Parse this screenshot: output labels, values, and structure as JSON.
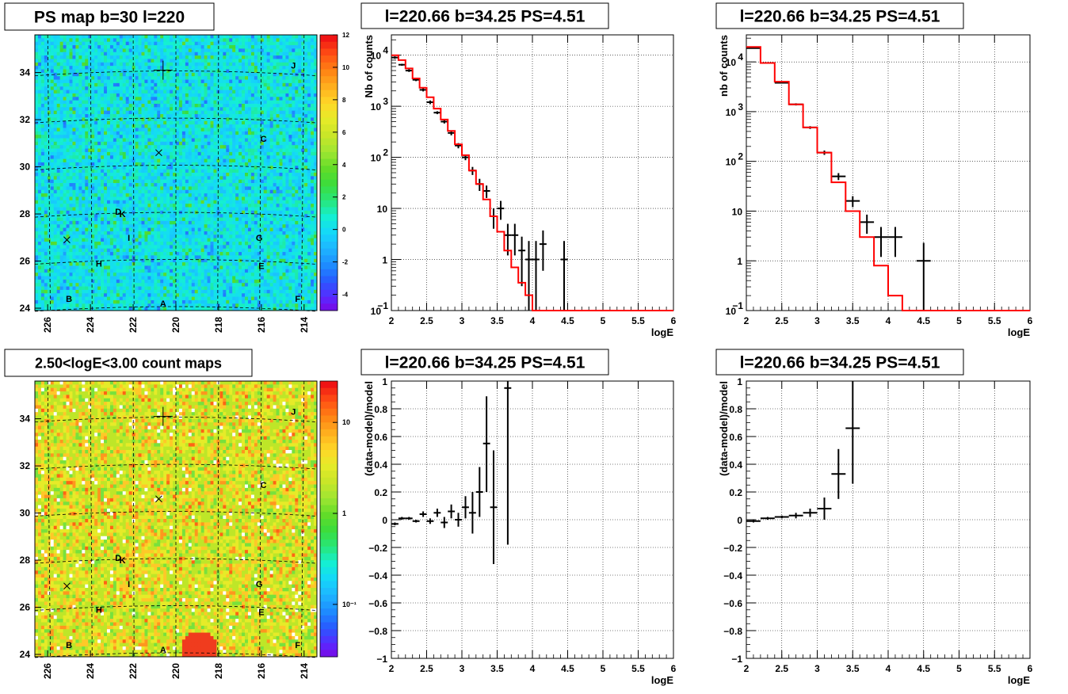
{
  "chart_data": [
    {
      "id": "psmap",
      "type": "heatmap",
      "title": "PS map b=30 l=220",
      "x_ticks": [
        "226",
        "224",
        "222",
        "220",
        "218",
        "216",
        "214"
      ],
      "y_ticks": [
        "24",
        "26",
        "28",
        "30",
        "32",
        "34"
      ],
      "xlim": [
        226.6,
        213.4
      ],
      "ylim": [
        23.9,
        35.6
      ],
      "colorbar_ticks": [
        "12",
        "10",
        "8",
        "6",
        "4",
        "2",
        "0",
        "-2",
        "-4"
      ],
      "colorbar_range": [
        -5,
        12
      ],
      "field_value_typical": 0.5,
      "sources": [
        {
          "label": "J",
          "l": 214.5,
          "b": 34.3
        },
        {
          "label": "C",
          "l": 215.9,
          "b": 31.2
        },
        {
          "label": "D",
          "l": 222.7,
          "b": 28.1
        },
        {
          "label": "K",
          "l": 222.5,
          "b": 28.0
        },
        {
          "label": "G",
          "l": 216.1,
          "b": 27.0
        },
        {
          "label": "I",
          "l": 222.2,
          "b": 27.0
        },
        {
          "label": "H",
          "l": 223.6,
          "b": 25.9
        },
        {
          "label": "E",
          "l": 216.0,
          "b": 25.8
        },
        {
          "label": "B",
          "l": 225.0,
          "b": 24.4
        },
        {
          "label": "A",
          "l": 220.6,
          "b": 24.2
        },
        {
          "label": "F",
          "l": 214.3,
          "b": 24.4
        }
      ],
      "markers": [
        {
          "symbol": "+",
          "l": 220.6,
          "b": 34.1
        },
        {
          "symbol": "x",
          "l": 220.8,
          "b": 30.6
        },
        {
          "symbol": "x",
          "l": 225.1,
          "b": 26.9
        }
      ]
    },
    {
      "id": "countmap",
      "type": "heatmap",
      "title": "2.50<logE<3.00 count maps",
      "x_ticks": [
        "226",
        "224",
        "222",
        "220",
        "218",
        "216",
        "214"
      ],
      "y_ticks": [
        "24",
        "26",
        "28",
        "30",
        "32",
        "34"
      ],
      "xlim": [
        226.6,
        213.4
      ],
      "ylim": [
        23.9,
        35.6
      ],
      "colorbar_ticks": [
        "10",
        "1",
        "10⁻¹"
      ],
      "colorbar_scale": "log",
      "sources": [
        {
          "label": "J",
          "l": 214.5,
          "b": 34.3
        },
        {
          "label": "C",
          "l": 215.9,
          "b": 31.2
        },
        {
          "label": "D",
          "l": 222.7,
          "b": 28.1
        },
        {
          "label": "K",
          "l": 222.5,
          "b": 28.0
        },
        {
          "label": "G",
          "l": 216.1,
          "b": 27.0
        },
        {
          "label": "I",
          "l": 222.2,
          "b": 27.0
        },
        {
          "label": "H",
          "l": 223.6,
          "b": 25.9
        },
        {
          "label": "E",
          "l": 216.0,
          "b": 25.8
        },
        {
          "label": "B",
          "l": 225.0,
          "b": 24.4
        },
        {
          "label": "A",
          "l": 220.6,
          "b": 24.2
        },
        {
          "label": "F",
          "l": 214.3,
          "b": 24.4
        }
      ],
      "markers": [
        {
          "symbol": "+",
          "l": 220.6,
          "b": 34.1
        },
        {
          "symbol": "x",
          "l": 220.8,
          "b": 30.6
        },
        {
          "symbol": "x",
          "l": 225.1,
          "b": 26.9
        }
      ]
    },
    {
      "id": "spec1",
      "type": "line",
      "title": "l=220.66 b=34.25 PS=4.51",
      "xlabel": "logE",
      "ylabel": "Nb of counts",
      "xlim": [
        2,
        6
      ],
      "ylim": [
        0.1,
        25000
      ],
      "yscale": "log",
      "grid": true,
      "x_ticks": [
        "2",
        "2.5",
        "3",
        "3.5",
        "4",
        "4.5",
        "5",
        "5.5",
        "6"
      ],
      "y_ticks": [
        {
          "v": 0.1,
          "t": "10",
          "sup": "−1"
        },
        {
          "v": 1,
          "t": "1",
          "sup": ""
        },
        {
          "v": 10,
          "t": "10",
          "sup": ""
        },
        {
          "v": 100,
          "t": "10",
          "sup": "2"
        },
        {
          "v": 1000,
          "t": "10",
          "sup": "3"
        },
        {
          "v": 10000,
          "t": "10",
          "sup": "4"
        }
      ],
      "series": [
        {
          "kind": "points",
          "x": [
            2.05,
            2.15,
            2.25,
            2.35,
            2.45,
            2.55,
            2.65,
            2.75,
            2.85,
            2.95,
            3.05,
            3.15,
            3.25,
            3.35,
            3.45,
            3.55,
            3.65,
            3.75,
            3.85,
            3.95,
            4.05,
            4.15,
            4.45
          ],
          "y": [
            9000,
            6500,
            5000,
            3300,
            2100,
            1200,
            750,
            500,
            300,
            170,
            100,
            55,
            30,
            22,
            7,
            10,
            3,
            3,
            1.5,
            1,
            1,
            2,
            1
          ],
          "ylo": [
            8500,
            6200,
            4700,
            3100,
            1950,
            1100,
            700,
            460,
            270,
            150,
            88,
            45,
            22,
            16,
            4,
            6,
            1.2,
            1.2,
            0.3,
            0.1,
            0.1,
            0.6,
            0.1
          ],
          "yhi": [
            9500,
            6800,
            5300,
            3500,
            2250,
            1300,
            800,
            540,
            330,
            190,
            112,
            65,
            38,
            28,
            10,
            14,
            5,
            5,
            2.8,
            2.3,
            2.3,
            3.7,
            2.3
          ]
        },
        {
          "kind": "model",
          "color": "#ff0000",
          "x": [
            2.0,
            2.1,
            2.2,
            2.3,
            2.4,
            2.5,
            2.6,
            2.7,
            2.8,
            2.9,
            3.0,
            3.1,
            3.2,
            3.3,
            3.4,
            3.5,
            3.6,
            3.7,
            3.8,
            3.9,
            4.0,
            4.1,
            4.2,
            6.0
          ],
          "y": [
            10000,
            8000,
            5500,
            3500,
            2300,
            1500,
            900,
            550,
            330,
            180,
            110,
            55,
            30,
            15,
            7,
            3.5,
            1.5,
            0.7,
            0.35,
            0.2,
            0.1,
            0.1,
            0.1,
            0.1
          ]
        }
      ]
    },
    {
      "id": "spec2",
      "type": "line",
      "title": "l=220.66 b=34.25 PS=4.51",
      "xlabel": "logE",
      "ylabel": "nb of counts",
      "xlim": [
        2,
        6
      ],
      "ylim": [
        0.1,
        35000
      ],
      "yscale": "log",
      "grid": true,
      "x_ticks": [
        "2",
        "2.5",
        "3",
        "3.5",
        "4",
        "4.5",
        "5",
        "5.5",
        "6"
      ],
      "y_ticks": [
        {
          "v": 0.1,
          "t": "10",
          "sup": "−1"
        },
        {
          "v": 1,
          "t": "1",
          "sup": ""
        },
        {
          "v": 10,
          "t": "10",
          "sup": ""
        },
        {
          "v": 100,
          "t": "10",
          "sup": "2"
        },
        {
          "v": 1000,
          "t": "10",
          "sup": "3"
        },
        {
          "v": 10000,
          "t": "10",
          "sup": "4"
        }
      ],
      "series": [
        {
          "kind": "points",
          "x": [
            2.1,
            2.3,
            2.5,
            2.7,
            2.9,
            3.1,
            3.3,
            3.5,
            3.7,
            3.9,
            4.1,
            4.5
          ],
          "y": [
            19000,
            9500,
            3800,
            1400,
            480,
            150,
            50,
            16,
            6,
            3,
            3,
            1
          ],
          "ylo": [
            18500,
            9300,
            3700,
            1330,
            450,
            135,
            42,
            12,
            3.5,
            1.2,
            1.2,
            0.1
          ],
          "yhi": [
            19500,
            9700,
            3900,
            1470,
            510,
            165,
            58,
            20,
            8.5,
            4.8,
            4.8,
            2.3
          ]
        },
        {
          "kind": "model",
          "color": "#ff0000",
          "x": [
            2.0,
            2.2,
            2.4,
            2.6,
            2.8,
            3.0,
            3.2,
            3.4,
            3.6,
            3.8,
            4.0,
            4.2,
            6.0
          ],
          "y": [
            20000,
            9500,
            4000,
            1400,
            480,
            150,
            38,
            10,
            3,
            0.8,
            0.2,
            0.1,
            0.1
          ]
        }
      ]
    },
    {
      "id": "resid1",
      "type": "scatter",
      "title": "l=220.66 b=34.25 PS=4.51",
      "xlabel": "logE",
      "ylabel": "(data-model)/model",
      "xlim": [
        2,
        6
      ],
      "ylim": [
        -1,
        1
      ],
      "grid": true,
      "x_ticks": [
        "2",
        "2.5",
        "3",
        "3.5",
        "4",
        "4.5",
        "5",
        "5.5",
        "6"
      ],
      "y_ticks": [
        "−1",
        "−0.8",
        "−0.6",
        "−0.4",
        "−0.2",
        "0",
        "0.2",
        "0.4",
        "0.6",
        "0.8",
        "1"
      ],
      "series": [
        {
          "kind": "points",
          "x": [
            2.05,
            2.15,
            2.25,
            2.35,
            2.45,
            2.55,
            2.65,
            2.75,
            2.85,
            2.95,
            3.05,
            3.15,
            3.25,
            3.35,
            3.45,
            3.65
          ],
          "y": [
            -0.03,
            0.01,
            0.01,
            -0.01,
            0.04,
            -0.01,
            0.05,
            -0.02,
            0.06,
            0.0,
            0.09,
            0.05,
            0.2,
            0.55,
            0.09,
            0.95
          ],
          "ylo": [
            -0.04,
            0.0,
            0.0,
            -0.02,
            0.02,
            -0.03,
            0.02,
            -0.06,
            0.01,
            -0.05,
            0.01,
            -0.1,
            0.02,
            0.2,
            -0.32,
            -0.18
          ],
          "yhi": [
            -0.02,
            0.02,
            0.02,
            0.0,
            0.06,
            0.01,
            0.08,
            0.02,
            0.11,
            0.05,
            0.17,
            0.2,
            0.38,
            0.89,
            0.5,
            1.0
          ]
        }
      ]
    },
    {
      "id": "resid2",
      "type": "scatter",
      "title": "l=220.66 b=34.25 PS=4.51",
      "xlabel": "logE",
      "ylabel": "(data-model)/model",
      "xlim": [
        2,
        6
      ],
      "ylim": [
        -1,
        1
      ],
      "grid": true,
      "x_ticks": [
        "2",
        "2.5",
        "3",
        "3.5",
        "4",
        "4.5",
        "5",
        "5.5",
        "6"
      ],
      "y_ticks": [
        "−1",
        "−0.8",
        "−0.6",
        "−0.4",
        "−0.2",
        "0",
        "0.2",
        "0.4",
        "0.6",
        "0.8",
        "1"
      ],
      "series": [
        {
          "kind": "points",
          "x": [
            2.1,
            2.3,
            2.5,
            2.7,
            2.9,
            3.1,
            3.3,
            3.5
          ],
          "y": [
            -0.01,
            0.01,
            0.02,
            0.03,
            0.05,
            0.08,
            0.33,
            0.66
          ],
          "ylo": [
            -0.02,
            0.0,
            0.01,
            0.01,
            0.02,
            0.0,
            0.15,
            0.26
          ],
          "yhi": [
            0.0,
            0.02,
            0.03,
            0.05,
            0.08,
            0.16,
            0.51,
            1.0
          ]
        }
      ]
    }
  ]
}
